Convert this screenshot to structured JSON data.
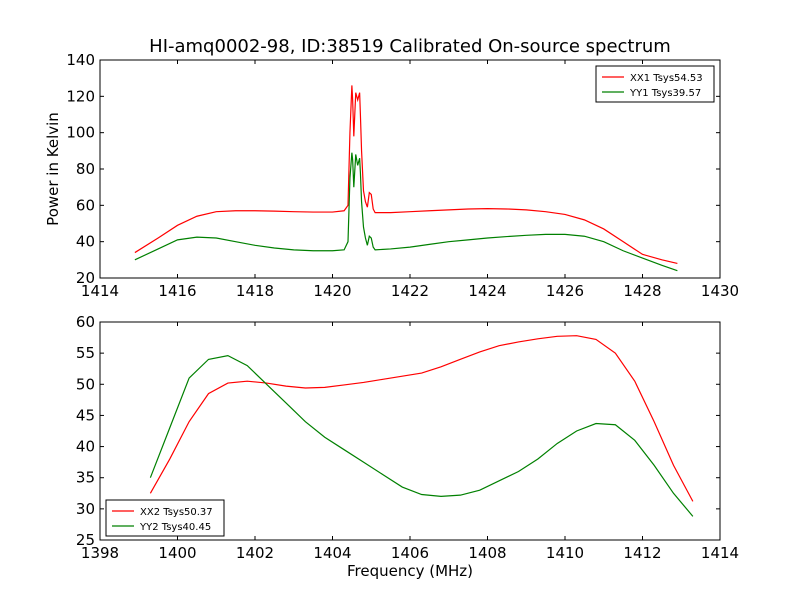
{
  "figure": {
    "title": "HI-amq0002-98, ID:38519 Calibrated On-source spectrum",
    "xlabel": "Frequency (MHz)"
  },
  "chart_data": [
    {
      "type": "line",
      "title": "HI-amq0002-98, ID:38519 Calibrated On-source spectrum",
      "xlabel": "",
      "ylabel": "Power in Kelvin",
      "xlim": [
        1414,
        1430
      ],
      "ylim": [
        20,
        140
      ],
      "xticks": [
        1414,
        1416,
        1418,
        1420,
        1422,
        1424,
        1426,
        1428,
        1430
      ],
      "yticks": [
        20,
        40,
        60,
        80,
        100,
        120,
        140
      ],
      "grid": false,
      "legend_position": "top-right",
      "series": [
        {
          "name": "XX1 Tsys54.53",
          "color": "#ff0000",
          "x": [
            1414.9,
            1415.5,
            1416.0,
            1416.5,
            1417.0,
            1417.5,
            1418.0,
            1418.5,
            1419.0,
            1419.5,
            1420.0,
            1420.3,
            1420.4,
            1420.45,
            1420.5,
            1420.52,
            1420.55,
            1420.6,
            1420.65,
            1420.7,
            1420.72,
            1420.75,
            1420.8,
            1420.85,
            1420.9,
            1420.95,
            1421.0,
            1421.05,
            1421.1,
            1421.5,
            1422.0,
            1422.5,
            1423.0,
            1423.5,
            1424.0,
            1424.5,
            1425.0,
            1425.5,
            1426.0,
            1426.5,
            1427.0,
            1427.5,
            1428.0,
            1428.5,
            1428.9
          ],
          "y": [
            34,
            42,
            49,
            54,
            56.5,
            57,
            57,
            56.8,
            56.5,
            56.3,
            56.3,
            57,
            60,
            100,
            126,
            118,
            98,
            122,
            118,
            122,
            110,
            90,
            68,
            62,
            59,
            67,
            66,
            58,
            56,
            56,
            56.5,
            57,
            57.5,
            58,
            58.2,
            58,
            57.5,
            56.5,
            55,
            52,
            47,
            40,
            33,
            30,
            28
          ]
        },
        {
          "name": "YY1 Tsys39.57",
          "color": "#008000",
          "x": [
            1414.9,
            1415.5,
            1416.0,
            1416.5,
            1417.0,
            1417.5,
            1418.0,
            1418.5,
            1419.0,
            1419.5,
            1420.0,
            1420.3,
            1420.4,
            1420.45,
            1420.5,
            1420.52,
            1420.55,
            1420.6,
            1420.65,
            1420.7,
            1420.72,
            1420.75,
            1420.8,
            1420.85,
            1420.9,
            1420.95,
            1421.0,
            1421.05,
            1421.1,
            1421.5,
            1422.0,
            1422.5,
            1423.0,
            1423.5,
            1424.0,
            1424.5,
            1425.0,
            1425.5,
            1426.0,
            1426.5,
            1427.0,
            1427.5,
            1428.0,
            1428.5,
            1428.9
          ],
          "y": [
            30,
            36,
            41,
            42.5,
            42,
            40,
            38,
            36.5,
            35.5,
            35,
            35,
            35.5,
            40,
            75,
            89,
            85,
            70,
            88,
            82,
            86,
            78,
            62,
            48,
            42,
            38,
            43,
            42,
            37,
            35.5,
            36,
            37,
            38.5,
            40,
            41,
            42,
            42.8,
            43.5,
            44,
            44,
            43,
            40,
            35,
            31,
            27,
            24
          ]
        }
      ]
    },
    {
      "type": "line",
      "title": "",
      "xlabel": "Frequency (MHz)",
      "ylabel": "",
      "xlim": [
        1398,
        1414
      ],
      "ylim": [
        25,
        60
      ],
      "xticks": [
        1398,
        1400,
        1402,
        1404,
        1406,
        1408,
        1410,
        1412,
        1414
      ],
      "yticks": [
        25,
        30,
        35,
        40,
        45,
        50,
        55,
        60
      ],
      "grid": false,
      "legend_position": "bottom-left",
      "series": [
        {
          "name": "XX2 Tsys50.37",
          "color": "#ff0000",
          "x": [
            1399.3,
            1399.8,
            1400.3,
            1400.8,
            1401.3,
            1401.8,
            1402.3,
            1402.8,
            1403.3,
            1403.8,
            1404.3,
            1404.8,
            1405.3,
            1405.8,
            1406.3,
            1406.8,
            1407.3,
            1407.8,
            1408.3,
            1408.8,
            1409.3,
            1409.8,
            1410.3,
            1410.8,
            1411.3,
            1411.8,
            1412.3,
            1412.8,
            1413.3
          ],
          "y": [
            32.5,
            38,
            44,
            48.5,
            50.2,
            50.5,
            50.2,
            49.7,
            49.4,
            49.5,
            49.9,
            50.3,
            50.8,
            51.3,
            51.8,
            52.8,
            54,
            55.2,
            56.2,
            56.8,
            57.3,
            57.7,
            57.8,
            57.2,
            55,
            50.5,
            44,
            37,
            31.2
          ]
        },
        {
          "name": "YY2 Tsys40.45",
          "color": "#008000",
          "x": [
            1399.3,
            1399.8,
            1400.3,
            1400.8,
            1401.3,
            1401.8,
            1402.3,
            1402.8,
            1403.3,
            1403.8,
            1404.3,
            1404.8,
            1405.3,
            1405.8,
            1406.3,
            1406.8,
            1407.3,
            1407.8,
            1408.3,
            1408.8,
            1409.3,
            1409.8,
            1410.3,
            1410.8,
            1411.3,
            1411.8,
            1412.3,
            1412.8,
            1413.3
          ],
          "y": [
            35,
            43,
            51,
            54,
            54.6,
            53,
            50,
            47,
            44,
            41.5,
            39.5,
            37.5,
            35.5,
            33.5,
            32.3,
            32,
            32.2,
            33,
            34.5,
            36,
            38,
            40.5,
            42.5,
            43.7,
            43.5,
            41,
            37,
            32.5,
            28.8
          ]
        }
      ]
    }
  ]
}
